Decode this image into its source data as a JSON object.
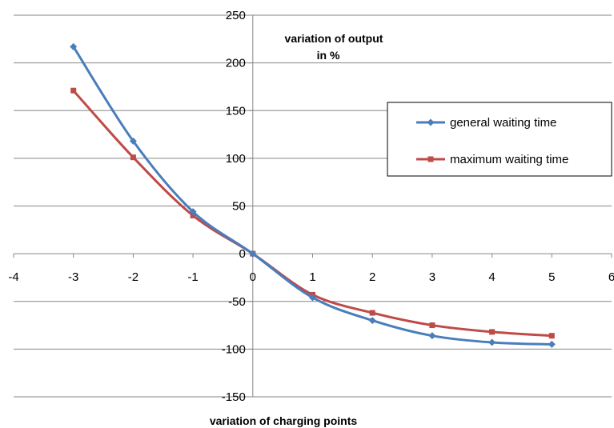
{
  "chart_data": {
    "type": "line",
    "xlabel": "variation of charging points",
    "ylabel_line1": "variation of output",
    "ylabel_line2": "in %",
    "xlim": [
      -4,
      6
    ],
    "ylim": [
      -150,
      250
    ],
    "x_ticks": [
      -4,
      -3,
      -2,
      -1,
      0,
      1,
      2,
      3,
      4,
      5,
      6
    ],
    "y_ticks": [
      -150,
      -100,
      -50,
      0,
      50,
      100,
      150,
      200,
      250
    ],
    "grid": "horizontal",
    "legend_position": "top-right",
    "series": [
      {
        "name": "general waiting time",
        "color": "#4a7ebb",
        "marker": "diamond",
        "x": [
          -3,
          -2,
          -1,
          0,
          1,
          2,
          3,
          4,
          5
        ],
        "y": [
          217,
          118,
          44,
          0,
          -46,
          -70,
          -86,
          -93,
          -95
        ]
      },
      {
        "name": "maximum waiting time",
        "color": "#be4b48",
        "marker": "square",
        "x": [
          -3,
          -2,
          -1,
          0,
          1,
          2,
          3,
          4,
          5
        ],
        "y": [
          171,
          101,
          40,
          0,
          -43,
          -62,
          -75,
          -82,
          -86
        ]
      }
    ]
  }
}
